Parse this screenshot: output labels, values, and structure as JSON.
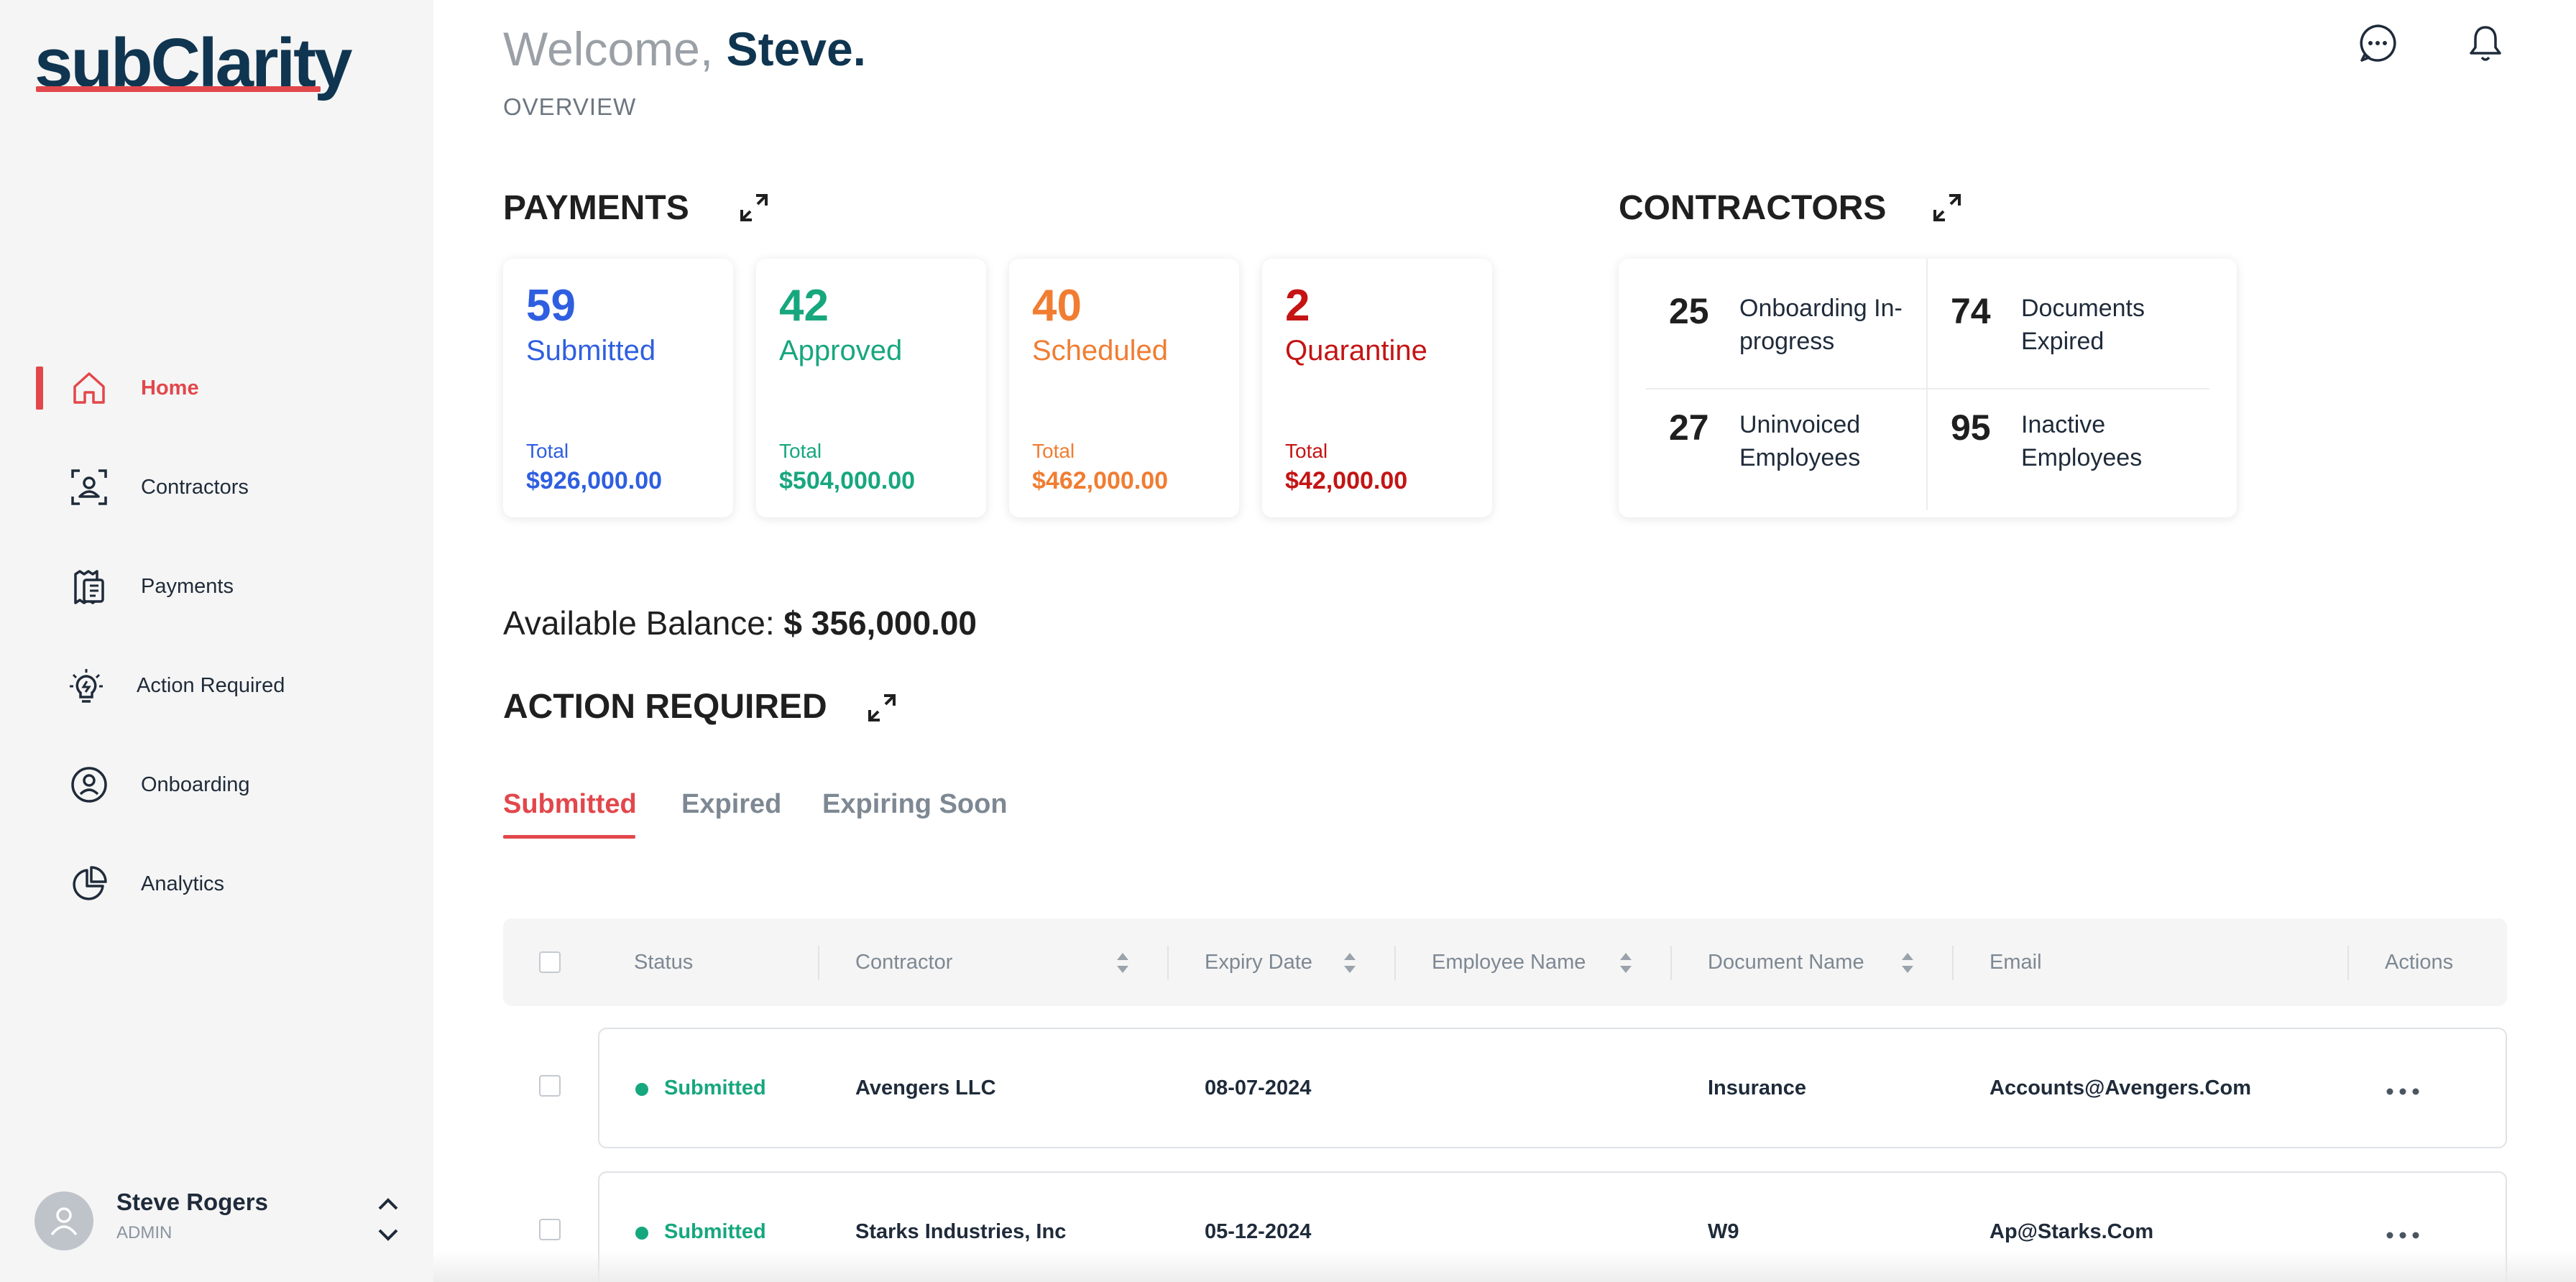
{
  "app": {
    "logo_text": "subClarity"
  },
  "sidebar": {
    "items": [
      {
        "label": "Home",
        "icon": "home-icon",
        "active": true
      },
      {
        "label": "Contractors",
        "icon": "contractor-id-icon"
      },
      {
        "label": "Payments",
        "icon": "payments-icon"
      },
      {
        "label": "Action Required",
        "icon": "lightbulb-icon"
      },
      {
        "label": "Onboarding",
        "icon": "onboarding-icon"
      },
      {
        "label": "Analytics",
        "icon": "pie-chart-icon"
      }
    ],
    "user": {
      "name": "Steve Rogers",
      "role": "ADMIN"
    }
  },
  "header": {
    "welcome_prefix": "Welcome,",
    "welcome_name": "Steve.",
    "subtitle": "OVERVIEW",
    "icons": [
      "chat-icon",
      "bell-icon"
    ]
  },
  "payments": {
    "title": "PAYMENTS",
    "cards": [
      {
        "count": "59",
        "label": "Submitted",
        "total_label": "Total",
        "total": "$926,000.00",
        "color": "#2f5fe0"
      },
      {
        "count": "42",
        "label": "Approved",
        "total_label": "Total",
        "total": "$504,000.00",
        "color": "#17a77e"
      },
      {
        "count": "40",
        "label": "Scheduled",
        "total_label": "Total",
        "total": "$462,000.00",
        "color": "#f07d32"
      },
      {
        "count": "2",
        "label": "Quarantine",
        "total_label": "Total",
        "total": "$42,000.00",
        "color": "#c41414"
      }
    ]
  },
  "contractors": {
    "title": "CONTRACTORS",
    "stats": [
      {
        "count": "25",
        "label": "Onboarding In-progress"
      },
      {
        "count": "74",
        "label": "Documents Expired"
      },
      {
        "count": "27",
        "label": "Uninvoiced Employees"
      },
      {
        "count": "95",
        "label": "Inactive Employees"
      }
    ]
  },
  "balance": {
    "label": "Available Balance:",
    "value": "$ 356,000.00"
  },
  "action_required": {
    "title": "ACTION REQUIRED",
    "tabs": [
      "Submitted",
      "Expired",
      "Expiring Soon"
    ],
    "active_tab": "Submitted",
    "columns": [
      "Status",
      "Contractor",
      "Expiry Date",
      "Employee Name",
      "Document Name",
      "Email",
      "Actions"
    ],
    "rows": [
      {
        "status": "Submitted",
        "contractor": "Avengers LLC",
        "expiry": "08-07-2024",
        "employee": "",
        "document": "Insurance",
        "email": "Accounts@Avengers.Com"
      },
      {
        "status": "Submitted",
        "contractor": "Starks Industries, Inc",
        "expiry": "05-12-2024",
        "employee": "",
        "document": "W9",
        "email": "Ap@Starks.Com"
      }
    ]
  }
}
